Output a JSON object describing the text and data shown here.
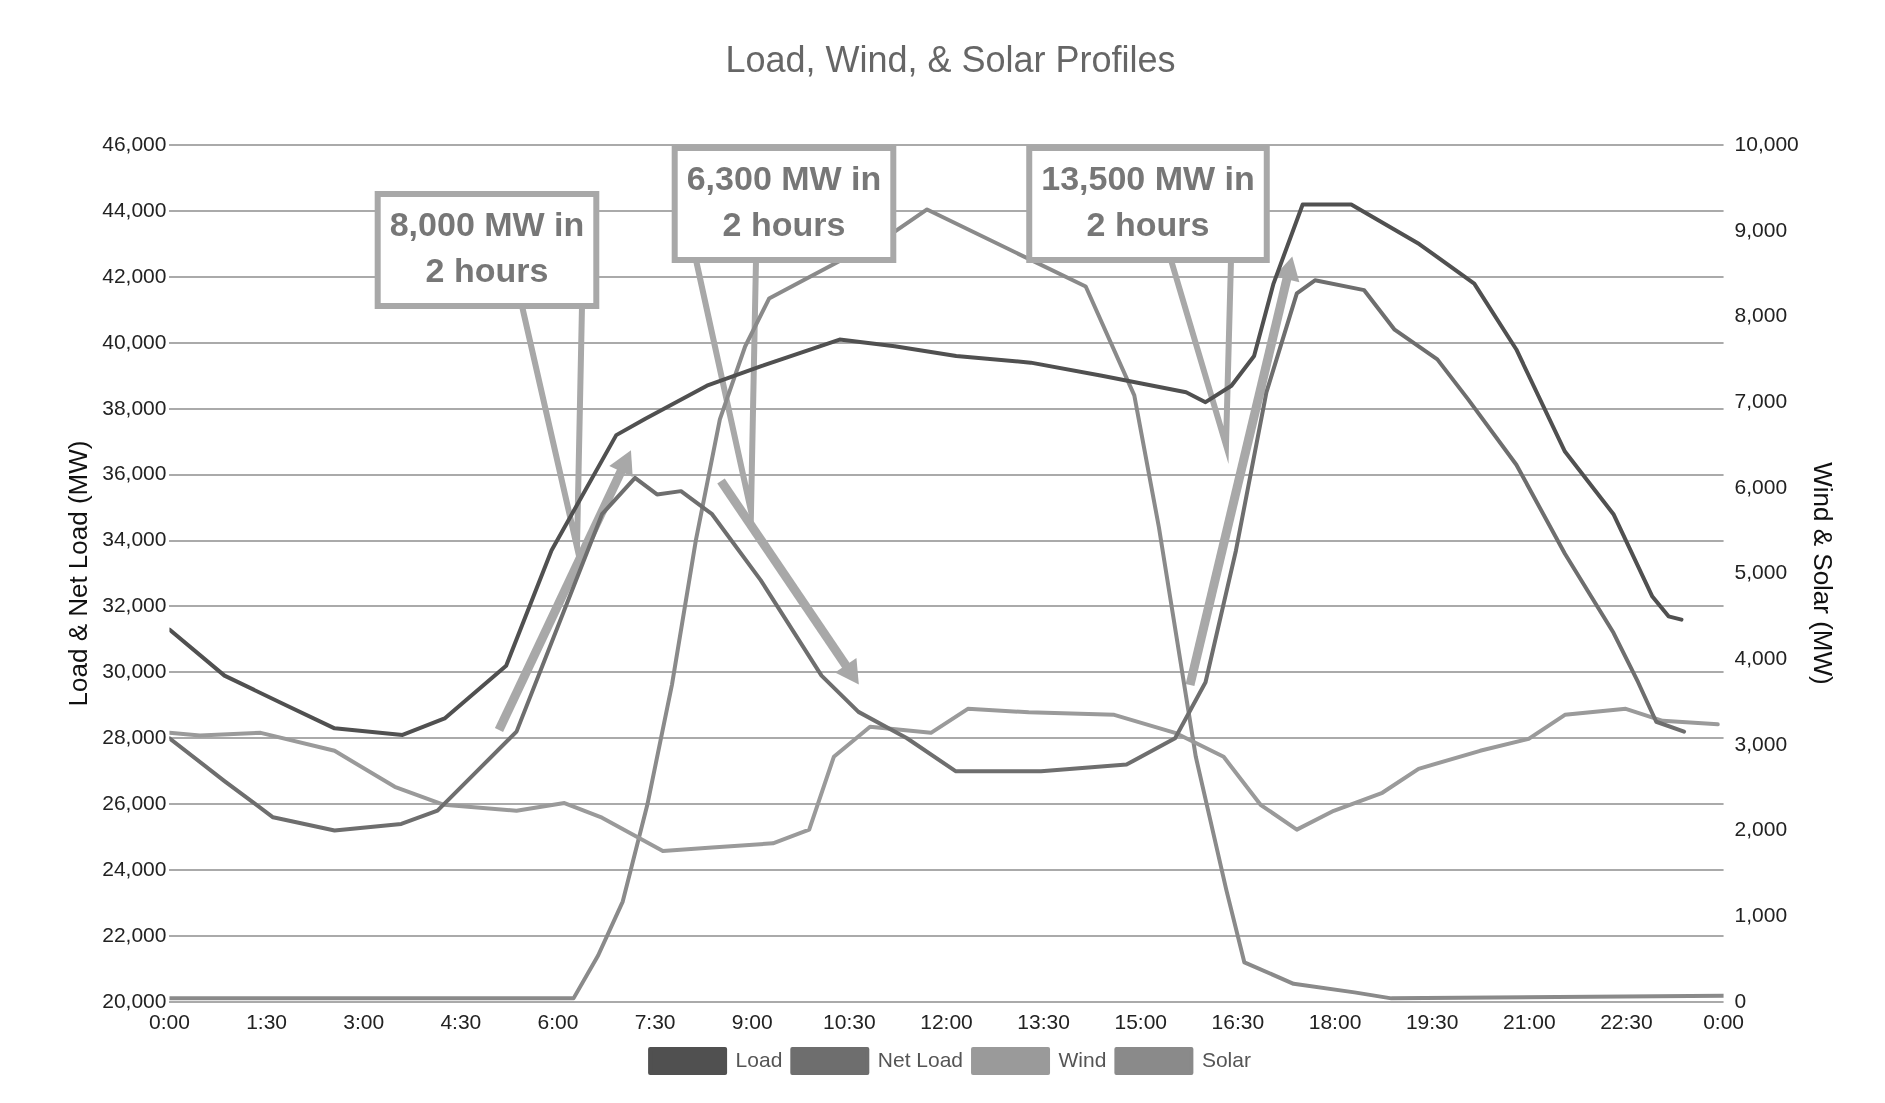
{
  "chart_data": {
    "type": "line",
    "title": "Load, Wind, & Solar Profiles",
    "ylabel": "Load & Net Load (MW)",
    "y2label": "Wind & Solar (MW)",
    "xlim": [
      0,
      24
    ],
    "xticks": [
      {
        "value": 0,
        "label": "0:00"
      },
      {
        "value": 1.5,
        "label": "1:30"
      },
      {
        "value": 3,
        "label": "3:00"
      },
      {
        "value": 4.5,
        "label": "4:30"
      },
      {
        "value": 6,
        "label": "6:00"
      },
      {
        "value": 7.5,
        "label": "7:30"
      },
      {
        "value": 9,
        "label": "9:00"
      },
      {
        "value": 10.5,
        "label": "10:30"
      },
      {
        "value": 12,
        "label": "12:00"
      },
      {
        "value": 13.5,
        "label": "13:30"
      },
      {
        "value": 15,
        "label": "15:00"
      },
      {
        "value": 16.5,
        "label": "16:30"
      },
      {
        "value": 18,
        "label": "18:00"
      },
      {
        "value": 19.5,
        "label": "19:30"
      },
      {
        "value": 21,
        "label": "21:00"
      },
      {
        "value": 22.5,
        "label": "22:30"
      },
      {
        "value": 24,
        "label": "0:00"
      }
    ],
    "ylim": [
      20000,
      46000
    ],
    "yticks": [
      {
        "value": 20000,
        "label": "20,000"
      },
      {
        "value": 22000,
        "label": "22,000"
      },
      {
        "value": 24000,
        "label": "24,000"
      },
      {
        "value": 26000,
        "label": "26,000"
      },
      {
        "value": 28000,
        "label": "28,000"
      },
      {
        "value": 30000,
        "label": "30,000"
      },
      {
        "value": 32000,
        "label": "32,000"
      },
      {
        "value": 34000,
        "label": "34,000"
      },
      {
        "value": 36000,
        "label": "36,000"
      },
      {
        "value": 38000,
        "label": "38,000"
      },
      {
        "value": 40000,
        "label": "40,000"
      },
      {
        "value": 42000,
        "label": "42,000"
      },
      {
        "value": 44000,
        "label": "44,000"
      },
      {
        "value": 46000,
        "label": "46,000"
      }
    ],
    "y2lim": [
      0,
      10000
    ],
    "y2ticks": [
      0,
      {
        "value": 1000,
        "label": "1,000"
      },
      {
        "value": 2000,
        "label": "2,000"
      },
      {
        "value": 3000,
        "label": "3,000"
      },
      {
        "value": 4000,
        "label": "4,000"
      },
      {
        "value": 5000,
        "label": "5,000"
      },
      {
        "value": 6000,
        "label": "6,000"
      },
      {
        "value": 7000,
        "label": "7,000"
      },
      {
        "value": 8000,
        "label": "8,000"
      },
      {
        "value": 9000,
        "label": "9,000"
      },
      {
        "value": 10000,
        "label": "10,000"
      }
    ],
    "grid": "y",
    "legend": "bottom",
    "marker": "none",
    "line_style": "solid",
    "series": [
      {
        "name": "Load",
        "color": "#505050",
        "x": [
          0,
          0.85,
          1.8,
          2.55,
          3.6,
          4.25,
          5.2,
          5.9,
          6.9,
          7.35,
          8.3,
          9.15,
          10.35,
          11.2,
          12.15,
          13.3,
          14.4,
          15.7,
          16.0,
          16.4,
          16.75,
          17.05,
          17.5,
          18.25,
          19.3,
          20.15,
          20.8,
          21.55,
          22.3,
          22.9,
          23.15,
          23.35
        ],
        "values": [
          31300,
          29900,
          29000,
          28300,
          28100,
          28600,
          30200,
          33700,
          37200,
          37700,
          38700,
          39300,
          40100,
          39900,
          39600,
          39400,
          39000,
          38500,
          38200,
          38700,
          39600,
          41800,
          44200,
          44200,
          43000,
          41800,
          39800,
          36700,
          34800,
          32300,
          31700,
          31600
        ]
      },
      {
        "name": "Net Load",
        "color": "#6e6e6e",
        "x": [
          0,
          0.85,
          1.6,
          2.55,
          3.58,
          4.14,
          4.8,
          5.36,
          6.1,
          6.68,
          7.19,
          7.53,
          7.9,
          8.38,
          9.13,
          10.07,
          10.64,
          11.39,
          12.14,
          13.46,
          14.78,
          15.53,
          16.0,
          16.47,
          16.94,
          17.41,
          17.69,
          18.45,
          18.92,
          19.58,
          20.05,
          20.8,
          21.55,
          22.3,
          22.68,
          22.96,
          23.39
        ],
        "values": [
          28000,
          26700,
          25600,
          25200,
          25400,
          25800,
          27100,
          28200,
          31900,
          34800,
          35900,
          35400,
          35500,
          34800,
          32800,
          29900,
          28800,
          28000,
          27000,
          27000,
          27200,
          28000,
          29700,
          33700,
          38500,
          41500,
          41900,
          41600,
          40400,
          39500,
          38300,
          36300,
          33600,
          31200,
          29700,
          28500,
          28200
        ]
      },
      {
        "name": "Wind",
        "axis": "y2",
        "color": "#9a9a9a",
        "x": [
          0,
          0.47,
          1.41,
          2.55,
          3.48,
          4.24,
          5.36,
          6.1,
          6.68,
          7.62,
          8.38,
          9.32,
          9.88,
          10.26,
          10.82,
          11.76,
          12.33,
          13.27,
          14.59,
          15.53,
          16.28,
          16.85,
          17.41,
          17.98,
          18.73,
          19.29,
          20.24,
          20.99,
          21.55,
          22.49,
          23.06,
          23.91
        ],
        "values": [
          3140,
          3110,
          3140,
          2930,
          2510,
          2300,
          2230,
          2320,
          2150,
          1760,
          1800,
          1850,
          2010,
          2860,
          3210,
          3140,
          3420,
          3380,
          3350,
          3140,
          2860,
          2300,
          2010,
          2230,
          2440,
          2720,
          2930,
          3070,
          3350,
          3420,
          3280,
          3240
        ]
      },
      {
        "name": "Solar",
        "axis": "y2",
        "color": "#8a8a8a",
        "x": [
          0,
          6.24,
          6.62,
          7.0,
          7.38,
          7.76,
          8.13,
          8.5,
          8.89,
          9.26,
          9.82,
          11.2,
          11.7,
          12.45,
          13.4,
          14.15,
          14.9,
          15.28,
          15.85,
          16.32,
          16.6,
          17.36,
          18.3,
          18.87,
          24
        ],
        "values": [
          40,
          40,
          540,
          1170,
          2300,
          3700,
          5390,
          6800,
          7650,
          8210,
          null,
          8990,
          9250,
          null,
          null,
          8350,
          7080,
          5540,
          2860,
          1310,
          460,
          210,
          110,
          40,
          70
        ]
      }
    ],
    "annotations": [
      "8,000 MW in\n2 hours",
      "6,300 MW in\n2 hours",
      "13,500 MW in\n2 hours"
    ]
  }
}
